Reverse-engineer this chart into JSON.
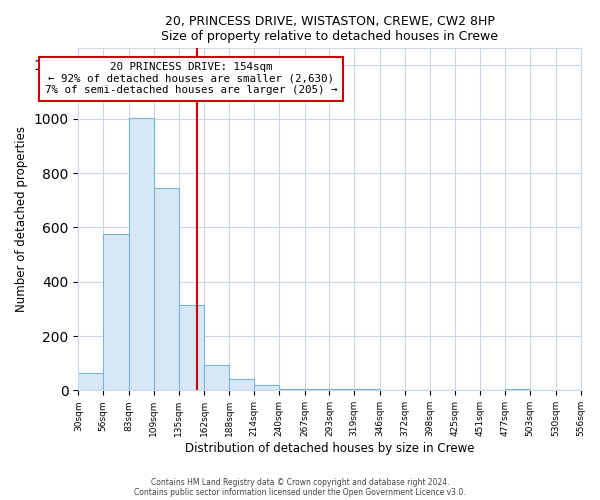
{
  "title": "20, PRINCESS DRIVE, WISTASTON, CREWE, CW2 8HP",
  "subtitle": "Size of property relative to detached houses in Crewe",
  "xlabel": "Distribution of detached houses by size in Crewe",
  "ylabel": "Number of detached properties",
  "bar_color": "#d6e8f7",
  "bar_edge_color": "#7ab4d8",
  "bin_edges": [
    30,
    56,
    83,
    109,
    135,
    162,
    188,
    214,
    240,
    267,
    293,
    319,
    346,
    372,
    398,
    425,
    451,
    477,
    503,
    530,
    556
  ],
  "bar_heights": [
    65,
    575,
    1005,
    745,
    315,
    95,
    40,
    20,
    5,
    5,
    5,
    5,
    0,
    0,
    0,
    0,
    0,
    5,
    0,
    0
  ],
  "tick_labels": [
    "30sqm",
    "56sqm",
    "83sqm",
    "109sqm",
    "135sqm",
    "162sqm",
    "188sqm",
    "214sqm",
    "240sqm",
    "267sqm",
    "293sqm",
    "319sqm",
    "346sqm",
    "372sqm",
    "398sqm",
    "425sqm",
    "451sqm",
    "477sqm",
    "503sqm",
    "530sqm",
    "556sqm"
  ],
  "property_value": 154,
  "vline_color": "#cc0000",
  "annotation_box_color": "#ffffff",
  "annotation_box_edge_color": "#cc0000",
  "annotation_line1": "20 PRINCESS DRIVE: 154sqm",
  "annotation_line2": "← 92% of detached houses are smaller (2,630)",
  "annotation_line3": "7% of semi-detached houses are larger (205) →",
  "ylim": [
    0,
    1260
  ],
  "footer1": "Contains HM Land Registry data © Crown copyright and database right 2024.",
  "footer2": "Contains public sector information licensed under the Open Government Licence v3.0.",
  "background_color": "#ffffff",
  "grid_color": "#ccd8e8"
}
